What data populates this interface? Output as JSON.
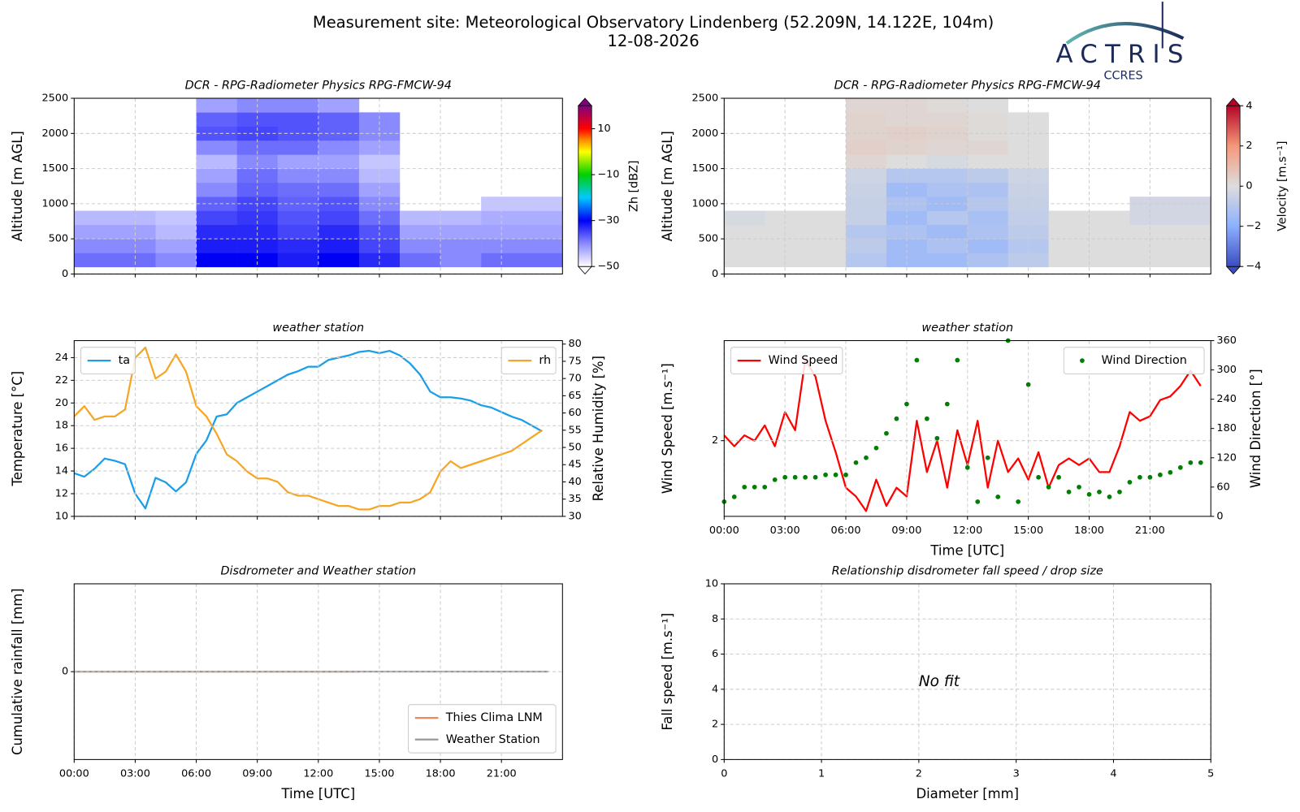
{
  "header": {
    "title": "Measurement site: Meteorological Observatory Lindenberg (52.209N, 14.122E, 104m)",
    "date": "12-08-2026"
  },
  "logo": {
    "name": "ACTRIS",
    "sub": "CCRES"
  },
  "chart_data": [
    {
      "type": "heatmap",
      "title": "DCR - RPG-Radiometer Physics RPG-FMCW-94",
      "ylabel": "Altitude [m AGL]",
      "clabel": "Zh [dBZ]",
      "xlim": [
        0,
        24
      ],
      "xticks": [
        0,
        3,
        6,
        9,
        12,
        15,
        18,
        21
      ],
      "show_xtick_labels": false,
      "ylim": [
        0,
        2500
      ],
      "yticks": [
        0,
        500,
        1000,
        1500,
        2000,
        2500
      ],
      "grid": true,
      "zlim": [
        -50,
        20
      ],
      "cticks": [
        {
          "value": -50,
          "label": "−50"
        },
        {
          "value": -30,
          "label": "−30"
        },
        {
          "value": -10,
          "label": "−10"
        },
        10
      ],
      "colormap": [
        {
          "value": -50,
          "color": "#ffffff"
        },
        {
          "value": -40,
          "color": "#8a8aff"
        },
        {
          "value": -30,
          "color": "#0000f5"
        },
        {
          "value": -20,
          "color": "#00c8ff"
        },
        {
          "value": -10,
          "color": "#00d000"
        },
        {
          "value": 0,
          "color": "#ffff00"
        },
        {
          "value": 5,
          "color": "#ff8c00"
        },
        {
          "value": 10,
          "color": "#ff0000"
        },
        {
          "value": 20,
          "color": "#800080"
        }
      ],
      "x_edges": [
        0,
        2,
        4,
        6,
        8,
        10,
        12,
        14,
        16,
        18,
        20,
        22,
        24
      ],
      "y_edges": [
        100,
        300,
        500,
        700,
        900,
        1100,
        1300,
        1500,
        1700,
        1900,
        2100,
        2300,
        2500
      ],
      "z": [
        [
          -38,
          -38,
          -40,
          -30,
          -30,
          -32,
          -30,
          -33,
          -38,
          -40,
          -38,
          -38
        ],
        [
          -40,
          -40,
          -42,
          -32,
          -32,
          -33,
          -32,
          -35,
          -40,
          -40,
          -40,
          -40
        ],
        [
          -42,
          -42,
          -44,
          -33,
          -33,
          -35,
          -33,
          -36,
          -42,
          -42,
          -42,
          -42
        ],
        [
          -44,
          -44,
          -45,
          -35,
          -34,
          -36,
          -35,
          -38,
          -44,
          -44,
          -43,
          -43
        ],
        [
          null,
          null,
          null,
          -37,
          -35,
          -37,
          -36,
          -40,
          null,
          null,
          -45,
          -45
        ],
        [
          null,
          null,
          null,
          -40,
          -37,
          -38,
          -38,
          -42,
          null,
          null,
          null,
          null
        ],
        [
          null,
          null,
          null,
          -42,
          -38,
          -40,
          -40,
          -44,
          null,
          null,
          null,
          null
        ],
        [
          null,
          null,
          null,
          -44,
          -40,
          -42,
          -42,
          -45,
          null,
          null,
          null,
          null
        ],
        [
          null,
          null,
          null,
          -40,
          -38,
          -38,
          -40,
          -42,
          null,
          null,
          null,
          null
        ],
        [
          null,
          null,
          null,
          -36,
          -35,
          -36,
          -37,
          -40,
          null,
          null,
          null,
          null
        ],
        [
          null,
          null,
          null,
          -37,
          -36,
          -36,
          -37,
          -40,
          null,
          null,
          null,
          null
        ],
        [
          null,
          null,
          null,
          -42,
          -40,
          -40,
          -42,
          null,
          null,
          null,
          null,
          null
        ]
      ]
    },
    {
      "type": "heatmap",
      "title": "DCR - RPG-Radiometer Physics RPG-FMCW-94",
      "ylabel": "Altitude [m AGL]",
      "clabel": "Velocity [m.s⁻¹]",
      "xlim": [
        0,
        24
      ],
      "xticks": [
        0,
        3,
        6,
        9,
        12,
        15,
        18,
        21
      ],
      "show_xtick_labels": false,
      "ylim": [
        0,
        2500
      ],
      "yticks": [
        0,
        500,
        1000,
        1500,
        2000,
        2500
      ],
      "grid": true,
      "zlim": [
        -4,
        4
      ],
      "cticks": [
        {
          "value": -4,
          "label": "−4"
        },
        {
          "value": -2,
          "label": "−2"
        },
        0,
        2,
        4
      ],
      "colormap": [
        {
          "value": -4,
          "color": "#3b4cc0"
        },
        {
          "value": -2,
          "color": "#8db0fe"
        },
        {
          "value": 0,
          "color": "#dddddd"
        },
        {
          "value": 2,
          "color": "#f4987a"
        },
        {
          "value": 4,
          "color": "#b40426"
        }
      ],
      "x_edges": [
        0,
        2,
        4,
        6,
        8,
        10,
        12,
        14,
        16,
        18,
        20,
        22,
        24
      ],
      "y_edges": [
        100,
        300,
        500,
        700,
        900,
        1100,
        1300,
        1500,
        1700,
        1900,
        2100,
        2300,
        2500
      ],
      "z": [
        [
          0,
          0,
          0,
          -1,
          -1.5,
          -1.5,
          -1.2,
          -0.8,
          0,
          0,
          0,
          0
        ],
        [
          0,
          0,
          0,
          -0.8,
          -1.5,
          -1.2,
          -1.5,
          -1,
          0,
          0,
          0,
          0
        ],
        [
          0,
          0,
          0,
          -1,
          -1.2,
          -1.5,
          -1.2,
          -0.8,
          0,
          0,
          0,
          0
        ],
        [
          -0.2,
          0,
          0,
          -0.6,
          -1.5,
          -1,
          -1.3,
          -0.7,
          0,
          0,
          -0.3,
          -0.3
        ],
        [
          null,
          null,
          null,
          -0.6,
          -1.2,
          -1.5,
          -1,
          -0.6,
          null,
          null,
          -0.3,
          -0.3
        ],
        [
          null,
          null,
          null,
          -0.5,
          -1.5,
          -1.2,
          -1.2,
          -0.5,
          null,
          null,
          null,
          null
        ],
        [
          null,
          null,
          null,
          -0.4,
          -1,
          -1,
          -0.8,
          -0.4,
          null,
          null,
          null,
          null
        ],
        [
          null,
          null,
          null,
          0.2,
          0,
          -0.2,
          0,
          0,
          null,
          null,
          null,
          null
        ],
        [
          null,
          null,
          null,
          0.4,
          0.3,
          0.2,
          0.2,
          0,
          null,
          null,
          null,
          null
        ],
        [
          null,
          null,
          null,
          0.3,
          0.4,
          0.3,
          0.1,
          0,
          null,
          null,
          null,
          null
        ],
        [
          null,
          null,
          null,
          0.3,
          0.2,
          0.2,
          0.1,
          0,
          null,
          null,
          null,
          null
        ],
        [
          null,
          null,
          null,
          0.2,
          0.2,
          0.1,
          0,
          null,
          null,
          null,
          null,
          null
        ]
      ]
    },
    {
      "type": "line",
      "title": "weather station",
      "ylabel": "Temperature [°C]",
      "y2label": "Relative Humidity [%]",
      "xlim": [
        0,
        24
      ],
      "xticks": [
        0,
        3,
        6,
        9,
        12,
        15,
        18,
        21
      ],
      "show_xtick_labels": false,
      "ylim": [
        10,
        25.5
      ],
      "yticks": [
        10,
        12,
        14,
        16,
        18,
        20,
        22,
        24
      ],
      "y2lim": [
        30,
        81
      ],
      "y2ticks": [
        30,
        35,
        40,
        45,
        50,
        55,
        60,
        65,
        70,
        75,
        80
      ],
      "grid": true,
      "x": [
        0,
        0.5,
        1,
        1.5,
        2,
        2.5,
        3,
        3.5,
        4,
        4.5,
        5,
        5.5,
        6,
        6.5,
        7,
        7.5,
        8,
        8.5,
        9,
        9.5,
        10,
        10.5,
        11,
        11.5,
        12,
        12.5,
        13,
        13.5,
        14,
        14.5,
        15,
        15.5,
        16,
        16.5,
        17,
        17.5,
        18,
        18.5,
        19,
        19.5,
        20,
        20.5,
        21,
        21.5,
        22,
        22.5,
        23
      ],
      "series": [
        {
          "name": "ta",
          "color": "#1a9ee8",
          "style": "line",
          "legend": "upper left",
          "values": [
            13.8,
            13.5,
            14.2,
            15.1,
            14.9,
            14.6,
            12.0,
            10.7,
            13.4,
            13.0,
            12.2,
            13.0,
            15.5,
            16.7,
            18.8,
            19.0,
            20.0,
            20.5,
            21.0,
            21.5,
            22.0,
            22.5,
            22.8,
            23.2,
            23.2,
            23.8,
            24.0,
            24.2,
            24.5,
            24.6,
            24.4,
            24.6,
            24.2,
            23.5,
            22.5,
            21.0,
            20.5,
            20.5,
            20.4,
            20.2,
            19.8,
            19.6,
            19.2,
            18.8,
            18.5,
            18.0,
            17.5
          ]
        },
        {
          "name": "rh",
          "color": "#f5a623",
          "style": "line",
          "legend": "upper right",
          "axis": "y2",
          "values": [
            59,
            62,
            58,
            59,
            59,
            61,
            76,
            79,
            70,
            72,
            77,
            72,
            62,
            59,
            54,
            48,
            46,
            43,
            41,
            41,
            40,
            37,
            36,
            36,
            35,
            34,
            33,
            33,
            32,
            32,
            33,
            33,
            34,
            34,
            35,
            37,
            43,
            46,
            44,
            45,
            46,
            47,
            48,
            49,
            51,
            53,
            55
          ]
        }
      ]
    },
    {
      "type": "line",
      "title": "weather station",
      "ylabel": "Wind Speed [m.s⁻¹]",
      "y2label": "Wind Direction [°]",
      "xlabel": "Time [UTC]",
      "xlim": [
        0,
        24
      ],
      "xticks": [
        {
          "value": 0,
          "label": "00:00"
        },
        {
          "value": 3,
          "label": "03:00"
        },
        {
          "value": 6,
          "label": "06:00"
        },
        {
          "value": 9,
          "label": "09:00"
        },
        {
          "value": 12,
          "label": "12:00"
        },
        {
          "value": 15,
          "label": "15:00"
        },
        {
          "value": 18,
          "label": "18:00"
        },
        {
          "value": 21,
          "label": "21:00"
        }
      ],
      "ylim": [
        1,
        5
      ],
      "ylog": true,
      "yticks": [
        2
      ],
      "y2lim": [
        0,
        360
      ],
      "y2ticks": [
        0,
        60,
        120,
        180,
        240,
        300,
        360
      ],
      "grid": true,
      "x": [
        0,
        0.5,
        1,
        1.5,
        2,
        2.5,
        3,
        3.5,
        4,
        4.5,
        5,
        5.5,
        6,
        6.5,
        7,
        7.5,
        8,
        8.5,
        9,
        9.5,
        10,
        10.5,
        11,
        11.5,
        12,
        12.5,
        13,
        13.5,
        14,
        14.5,
        15,
        15.5,
        16,
        16.5,
        17,
        17.5,
        18,
        18.5,
        19,
        19.5,
        20,
        20.5,
        21,
        21.5,
        22,
        22.5,
        23,
        23.5
      ],
      "series": [
        {
          "name": "Wind Speed",
          "color": "#ff0000",
          "style": "line",
          "legend": "upper left",
          "values": [
            2.1,
            1.9,
            2.1,
            2.0,
            2.3,
            1.9,
            2.6,
            2.2,
            4.2,
            3.6,
            2.4,
            1.8,
            1.3,
            1.2,
            1.05,
            1.4,
            1.1,
            1.3,
            1.2,
            2.4,
            1.5,
            2.0,
            1.3,
            2.2,
            1.6,
            2.4,
            1.3,
            2.0,
            1.5,
            1.7,
            1.4,
            1.8,
            1.3,
            1.6,
            1.7,
            1.6,
            1.7,
            1.5,
            1.5,
            1.9,
            2.6,
            2.4,
            2.5,
            2.9,
            3.0,
            3.3,
            3.8,
            3.3
          ]
        },
        {
          "name": "Wind Direction",
          "color": "#008000",
          "style": "markers",
          "legend": "upper right",
          "axis": "y2",
          "values": [
            30,
            40,
            60,
            60,
            60,
            75,
            80,
            80,
            80,
            80,
            85,
            85,
            85,
            110,
            120,
            140,
            170,
            200,
            230,
            320,
            200,
            160,
            230,
            320,
            100,
            30,
            120,
            40,
            360,
            30,
            270,
            80,
            60,
            80,
            50,
            60,
            45,
            50,
            40,
            50,
            70,
            80,
            80,
            85,
            90,
            100,
            110,
            110
          ]
        }
      ]
    },
    {
      "type": "line",
      "title": "Disdrometer and Weather station",
      "ylabel": "Cumulative rainfall [mm]",
      "xlabel": "Time [UTC]",
      "xlim": [
        0,
        24
      ],
      "xticks": [
        {
          "value": 0,
          "label": "00:00"
        },
        {
          "value": 3,
          "label": "03:00"
        },
        {
          "value": 6,
          "label": "06:00"
        },
        {
          "value": 9,
          "label": "09:00"
        },
        {
          "value": 12,
          "label": "12:00"
        },
        {
          "value": 15,
          "label": "15:00"
        },
        {
          "value": 18,
          "label": "18:00"
        },
        {
          "value": 21,
          "label": "21:00"
        }
      ],
      "ylim": [
        -0.05,
        0.05
      ],
      "yticks": [
        0
      ],
      "grid": true,
      "series": [
        {
          "name": "Thies Clima LNM",
          "color": "#f0875c",
          "style": "line",
          "legend": "lower right",
          "x": [
            0,
            14
          ],
          "values": [
            0,
            0
          ]
        },
        {
          "name": "Weather Station",
          "color": "#999999",
          "style": "line",
          "legend": "lower right",
          "x": [
            0,
            23.3
          ],
          "values": [
            0,
            0
          ]
        }
      ]
    },
    {
      "type": "scatter",
      "title": "Relationship disdrometer fall speed / drop size",
      "ylabel": "Fall speed [m.s⁻¹]",
      "xlabel": "Diameter [mm]",
      "annotation": "No fit",
      "xlim": [
        0,
        5
      ],
      "xticks": [
        0,
        1,
        2,
        3,
        4,
        5
      ],
      "ylim": [
        0,
        10
      ],
      "yticks": [
        0,
        2,
        4,
        6,
        8,
        10
      ],
      "grid": true
    }
  ]
}
